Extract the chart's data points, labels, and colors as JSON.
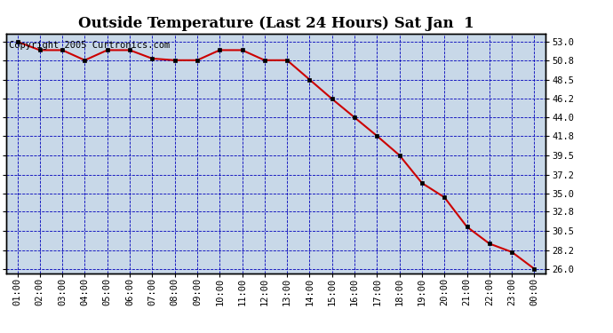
{
  "title": "Outside Temperature (Last 24 Hours) Sat Jan  1",
  "copyright_text": "Copyright 2005 Curtronics.com",
  "x_labels": [
    "01:00",
    "02:00",
    "03:00",
    "04:00",
    "05:00",
    "06:00",
    "07:00",
    "08:00",
    "09:00",
    "10:00",
    "11:00",
    "12:00",
    "13:00",
    "14:00",
    "15:00",
    "16:00",
    "17:00",
    "18:00",
    "19:00",
    "20:00",
    "21:00",
    "22:00",
    "23:00",
    "00:00"
  ],
  "x_values": [
    1,
    2,
    3,
    4,
    5,
    6,
    7,
    8,
    9,
    10,
    11,
    12,
    13,
    14,
    15,
    16,
    17,
    18,
    19,
    20,
    21,
    22,
    23,
    24
  ],
  "y_values": [
    53.0,
    52.0,
    52.0,
    50.8,
    52.0,
    52.0,
    51.0,
    50.8,
    50.8,
    52.0,
    52.0,
    50.8,
    50.8,
    48.5,
    46.2,
    44.0,
    41.8,
    39.5,
    36.2,
    34.5,
    31.0,
    29.0,
    28.0,
    26.0
  ],
  "y_ticks": [
    26.0,
    28.2,
    30.5,
    32.8,
    35.0,
    37.2,
    39.5,
    41.8,
    44.0,
    46.2,
    48.5,
    50.8,
    53.0
  ],
  "ylim": [
    25.5,
    54.0
  ],
  "xlim": [
    0.5,
    24.5
  ],
  "line_color": "#cc0000",
  "marker_color": "#000000",
  "bg_color": "#c8d8e8",
  "fig_bg_color": "#ffffff",
  "grid_color": "#0000bb",
  "title_fontsize": 12,
  "copyright_fontsize": 7.5,
  "tick_label_fontsize": 7.5,
  "tick_label_color": "#000000"
}
